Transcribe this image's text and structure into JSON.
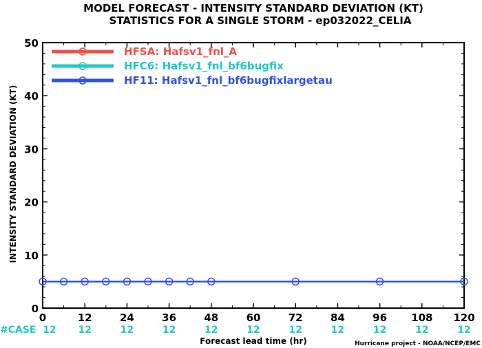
{
  "chart_data": {
    "type": "line",
    "title_line1": "MODEL FORECAST - INTENSITY STANDARD DEVIATION (KT)",
    "title_line2": "STATISTICS FOR A SINGLE STORM - ep032022_CELIA",
    "xlabel": "Forecast lead time (hr)",
    "ylabel": "INTENSITY STANDARD DEVIATION (KT)",
    "xlim": [
      0,
      120
    ],
    "ylim": [
      0,
      50
    ],
    "x_ticks": [
      "0",
      "12",
      "24",
      "36",
      "48",
      "60",
      "72",
      "84",
      "96",
      "108",
      "120"
    ],
    "y_ticks": [
      "0",
      "10",
      "20",
      "30",
      "40",
      "50"
    ],
    "grid": false,
    "legend_position": "top-left",
    "series": [
      {
        "name": "HFSA: Hafsv1_fnl_A",
        "color": "#f0504a",
        "x": [],
        "y": []
      },
      {
        "name": "HFC6: Hafsv1_fnl_bf6bugfix",
        "color": "#22c8c0",
        "x": [],
        "y": []
      },
      {
        "name": "HF11: Hafsv1_fnl_bf6bugfixlargetau",
        "color": "#3050e6",
        "x": [
          0,
          6,
          12,
          18,
          24,
          30,
          36,
          42,
          48,
          72,
          96,
          120
        ],
        "y": [
          5,
          5,
          5,
          5,
          5,
          5,
          5,
          5,
          5,
          5,
          5,
          5
        ]
      }
    ],
    "case_counts": {
      "label": "#CASE",
      "color": "#22c8c0",
      "x": [
        0,
        12,
        24,
        36,
        48,
        60,
        72,
        84,
        96,
        108,
        120
      ],
      "values": [
        "12",
        "12",
        "12",
        "12",
        "12",
        "12",
        "12",
        "12",
        "12",
        "12",
        "12"
      ]
    }
  },
  "credit": "Hurricane project - NOAA/NCEP/EMC"
}
